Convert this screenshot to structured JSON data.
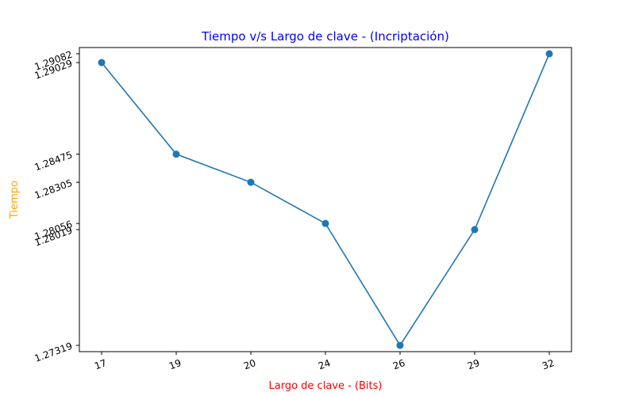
{
  "chart_data": {
    "type": "line",
    "title": "Tiempo v/s Largo de clave - (Incriptación)",
    "xlabel": "Largo de clave - (Bits)",
    "ylabel": "Tiempo",
    "categories": [
      "17",
      "19",
      "20",
      "24",
      "26",
      "29",
      "32"
    ],
    "values": [
      1.29029,
      1.28475,
      1.28305,
      1.28056,
      1.27319,
      1.28019,
      1.29082
    ],
    "y_ticks": [
      1.29082,
      1.29029,
      1.28475,
      1.28305,
      1.28056,
      1.28019,
      1.27319
    ],
    "ylim": [
      1.27281,
      1.2912
    ],
    "grid": false,
    "marker": "circle",
    "colors": {
      "line": "#1f77b4",
      "title": "#0000ff",
      "xlabel": "#ff0000",
      "ylabel": "#ffa500",
      "axis": "#000000"
    }
  }
}
